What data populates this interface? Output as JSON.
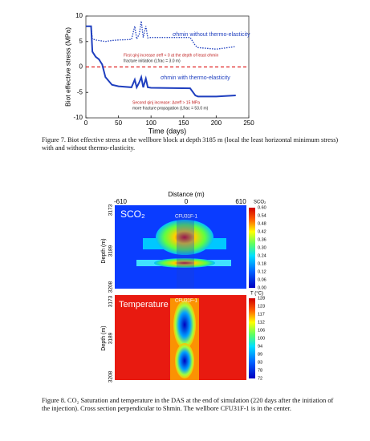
{
  "chart_data": [
    {
      "type": "line",
      "ylabel": "Biot effective stress (MPa)",
      "xlabel": "Time (days)",
      "x": [
        0,
        8,
        10,
        15,
        20,
        25,
        30,
        40,
        50,
        70,
        75,
        78,
        82,
        85,
        88,
        92,
        95,
        100,
        160,
        168,
        172,
        200,
        230
      ],
      "series": [
        {
          "name": "σhmin without thermo-elasticity",
          "color": "#1f3fbf",
          "dash": "dotted",
          "values": [
            8,
            8,
            5.5,
            5.3,
            5.2,
            5.1,
            5,
            5.2,
            5.3,
            5.4,
            8,
            5.5,
            6.5,
            9,
            5.8,
            8,
            5.7,
            5.8,
            5.8,
            4.2,
            3.8,
            3.5,
            4
          ]
        },
        {
          "name": "σhmin with thermo-elasticity",
          "color": "#1f3fbf",
          "dash": "solid",
          "values": [
            8,
            8,
            3,
            2,
            1.5,
            0.5,
            -2,
            -3.5,
            -3.8,
            -4,
            -2.5,
            -4,
            -3,
            -2,
            -4,
            -2.3,
            -4,
            -4.1,
            -4.2,
            -5.6,
            -5.8,
            -5.8,
            -5.6
          ]
        }
      ],
      "reference_line": {
        "value": 0,
        "color": "#e02020"
      },
      "annotations": [
        "First qinj increase σeff < 0 at the depth of least σhmin",
        "fracture initiation (Lfrac = 3.0 m)",
        "Second qinj increase: Δσeff > 15 MPa",
        "more fracture propagation (Lfrac = 53.0 m)"
      ],
      "xlim": [
        0,
        250
      ],
      "xticks": [
        0,
        50,
        100,
        150,
        200,
        250
      ],
      "ylim": [
        -10,
        10
      ],
      "yticks": [
        -10,
        -5,
        0,
        5,
        10
      ]
    }
  ],
  "figure7_caption": "Figure 7. Biot effective stress at the wellbore block at depth 3185 m (local the least horizontal minimum stress) with and without thermo-elasticity.",
  "figure8": {
    "xlabel": "Distance (m)",
    "xticks": [
      "-610",
      "0",
      "610"
    ],
    "ylabel": "Depth (m)",
    "yticks": [
      "3173",
      "3189",
      "3208"
    ],
    "well": "CFU31F-1",
    "panels": [
      {
        "label": "SCO₂",
        "colorbar_title": "SCO₂",
        "colorbar_ticks": [
          "0.60",
          "0.54",
          "0.48",
          "0.42",
          "0.36",
          "0.30",
          "0.24",
          "0.18",
          "0.12",
          "0.06",
          "0.00"
        ]
      },
      {
        "label": "Temperature",
        "colorbar_title": "T (°C)",
        "colorbar_ticks": [
          "128",
          "123",
          "117",
          "112",
          "106",
          "100",
          "94",
          "89",
          "83",
          "78",
          "72"
        ]
      }
    ]
  },
  "figure8_caption": "Figure 8. CO₂ Saturation and temperature in the DAS at the end of simulation (220 days after the initiation of the injection). Cross section perpendicular to Shmin. The wellbore CFU31F-1 is in the center."
}
